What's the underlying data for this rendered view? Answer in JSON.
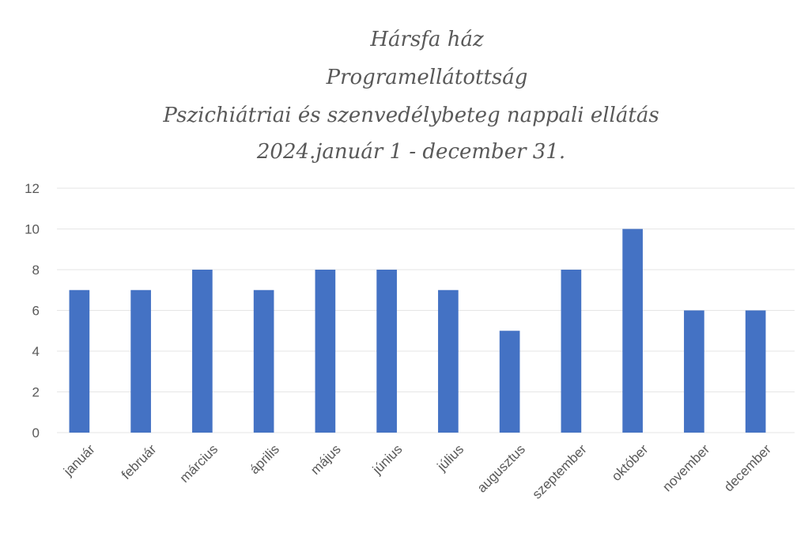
{
  "chart_data": {
    "type": "bar",
    "title": [
      "Hársfa ház",
      "Programellátottság",
      "Pszichiátriai és szenvedélybeteg nappali ellátás",
      "2024.január 1 - december 31."
    ],
    "categories": [
      "január",
      "február",
      "március",
      "április",
      "május",
      "június",
      "július",
      "augusztus",
      "szeptember",
      "október",
      "november",
      "december"
    ],
    "values": [
      7,
      7,
      8,
      7,
      8,
      8,
      7,
      5,
      8,
      10,
      6,
      6
    ],
    "color": "#4472c4",
    "ylim": [
      0,
      12
    ],
    "yticks": [
      0,
      2,
      4,
      6,
      8,
      10,
      12
    ],
    "grid": true
  }
}
